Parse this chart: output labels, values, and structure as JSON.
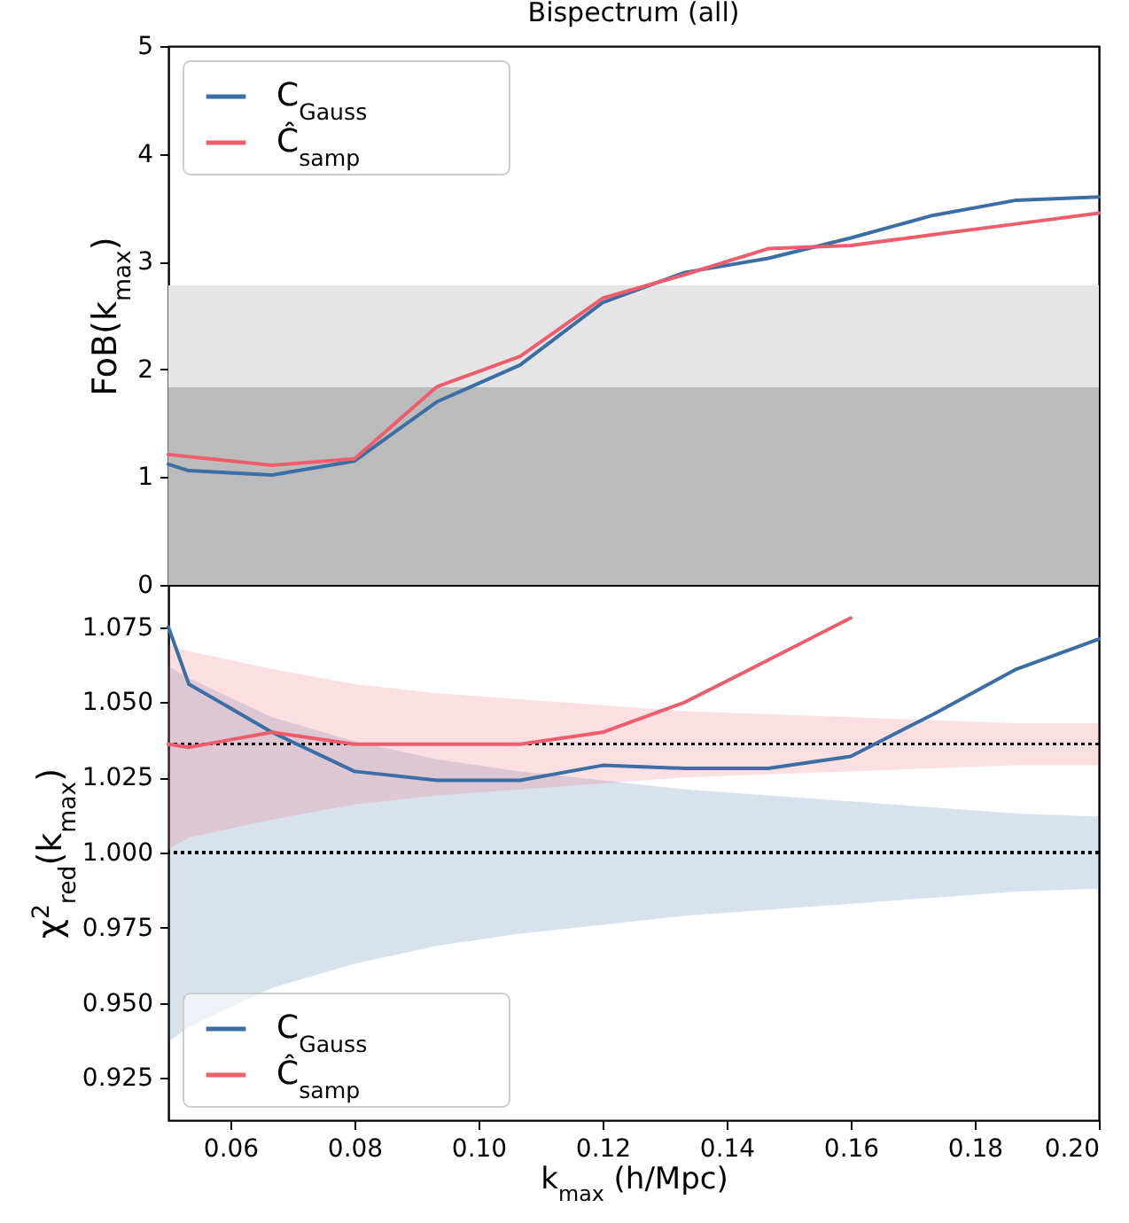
{
  "chart_data": [
    {
      "type": "line",
      "title": "Bispectrum (all)",
      "ylabel": "FoB(k$_{max}$)",
      "xlim": [
        0.05,
        0.2
      ],
      "ylim": [
        0,
        5
      ],
      "yticks": [
        0,
        1,
        2,
        3,
        4,
        5
      ],
      "tick_labels": "y",
      "legend": "top left",
      "line_style": "solid",
      "marker": "none",
      "x": [
        0.05,
        0.0533,
        0.0667,
        0.08,
        0.0933,
        0.1067,
        0.12,
        0.1333,
        0.1467,
        0.16,
        0.1733,
        0.1867,
        0.2
      ],
      "bands": [
        {
          "axis": "y",
          "from": 0,
          "to": 1.84,
          "color": "#bbbbbb"
        },
        {
          "axis": "y",
          "from": 1.84,
          "to": 2.78,
          "color": "#e5e5e5"
        }
      ],
      "series": [
        {
          "name": "C$_{Gauss}$",
          "color": "#3a6ea5",
          "values": [
            1.12,
            1.06,
            1.02,
            1.15,
            1.7,
            2.04,
            2.62,
            2.9,
            3.03,
            3.22,
            3.43,
            3.57,
            3.6
          ]
        },
        {
          "name": "Ĉ$_{samp}$",
          "color": "#ee5d6c",
          "values": [
            1.21,
            1.19,
            1.11,
            1.17,
            1.84,
            2.12,
            2.66,
            2.88,
            3.12,
            3.15,
            3.25,
            3.35,
            3.45
          ]
        }
      ]
    },
    {
      "type": "line",
      "xlabel": "k$_{max}$ (h/Mpc)",
      "ylabel": "χ$^{2}$$_{red}$(k$_{max}$)",
      "xlim": [
        0.05,
        0.2
      ],
      "xticks": [
        0.06,
        0.08,
        {
          "value": 0.1,
          "label": "0.10"
        },
        0.12,
        0.14,
        0.16,
        0.18,
        {
          "value": 0.2,
          "label": "0.20"
        }
      ],
      "ylim": [
        0.911,
        1.089
      ],
      "yticks": [
        {
          "value": 0.925,
          "label": "0.925"
        },
        {
          "value": 0.95,
          "label": "0.950"
        },
        {
          "value": 0.975,
          "label": "0.975"
        },
        {
          "value": 1,
          "label": "1.000"
        },
        {
          "value": 1.025,
          "label": "1.025"
        },
        {
          "value": 1.05,
          "label": "1.050"
        },
        {
          "value": 1.075,
          "label": "1.075"
        }
      ],
      "legend": "bottom left",
      "line_style": "solid",
      "marker": "none",
      "x": [
        0.05,
        0.0533,
        0.0667,
        0.08,
        0.0933,
        0.1067,
        0.12,
        0.1333,
        0.1467,
        0.16,
        0.1733,
        0.1867,
        0.2
      ],
      "ref_lines": [
        {
          "axis": "y",
          "value": 1.036,
          "color": "#000000",
          "line_style": "dotted"
        },
        {
          "axis": "y",
          "value": 1,
          "color": "#000000",
          "line_style": "dotted"
        }
      ],
      "series": [
        {
          "name": "C$_{Gauss}$",
          "color": "#3a6ea5",
          "values": [
            1.075,
            1.056,
            1.04,
            1.027,
            1.024,
            1.024,
            1.029,
            1.028,
            1.028,
            1.032,
            1.046,
            1.061,
            1.071
          ],
          "upper": [
            1.062,
            1.058,
            1.045,
            1.037,
            1.031,
            1.027,
            1.024,
            1.021,
            1.019,
            1.017,
            1.015,
            1.013,
            1.012
          ],
          "lower": [
            0.937,
            0.942,
            0.955,
            0.963,
            0.969,
            0.973,
            0.976,
            0.979,
            0.981,
            0.983,
            0.985,
            0.987,
            0.988
          ]
        },
        {
          "name": "Ĉ$_{samp}$",
          "color": "#ee5d6c",
          "values": [
            1.036,
            1.035,
            1.04,
            1.036,
            1.036,
            1.036,
            1.04,
            1.05,
            1.064,
            1.078,
            null,
            null,
            null
          ],
          "upper": [
            1.069,
            1.067,
            1.061,
            1.056,
            1.053,
            1.051,
            1.049,
            1.047,
            1.046,
            1.045,
            1.044,
            1.043,
            1.043
          ],
          "lower": [
            1.001,
            1.005,
            1.011,
            1.016,
            1.019,
            1.021,
            1.023,
            1.025,
            1.026,
            1.027,
            1.028,
            1.029,
            1.029
          ]
        }
      ]
    }
  ]
}
